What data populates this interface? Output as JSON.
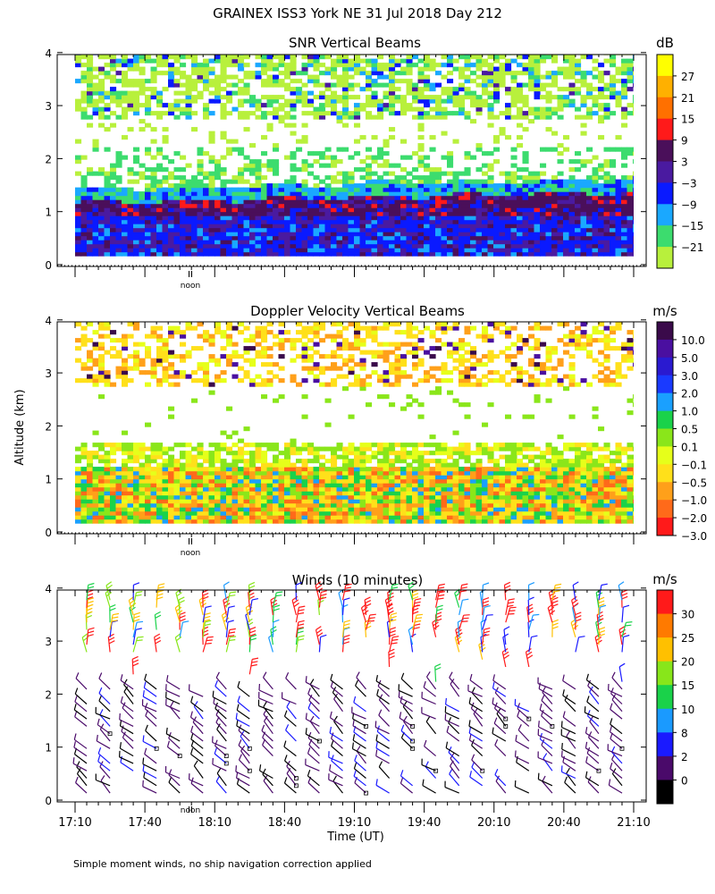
{
  "figure": {
    "title": "GRAINEX ISS3 York NE  31 Jul 2018 Day 212",
    "ylabel": "Altitude (km)",
    "xlabel": "Time (UT)",
    "footnote": "Simple moment winds, no ship navigation correction applied",
    "noon_label": "noon"
  },
  "chart_data": [
    {
      "type": "heatmap",
      "title": "SNR Vertical Beams",
      "x_ticks": [
        "17:10",
        "17:40",
        "18:10",
        "18:40",
        "19:10",
        "19:40",
        "20:10",
        "20:40",
        "21:10"
      ],
      "xlim": [
        "17:10",
        "21:10"
      ],
      "y_ticks": [
        "0",
        "1",
        "2",
        "3",
        "4"
      ],
      "ylim": [
        0,
        4
      ],
      "colorbar": {
        "unit": "dB",
        "labels": [
          "27",
          "21",
          "15",
          "9",
          "3",
          "−3",
          "−9",
          "−15",
          "−21"
        ],
        "colors": [
          "#ffff00",
          "#ffb000",
          "#ff7000",
          "#ff1a1a",
          "#4a0f5a",
          "#4a1aa0",
          "#0a1aff",
          "#1aa8ff",
          "#3cdc6e",
          "#b8f03c"
        ]
      },
      "layers": [
        {
          "altitude_km": [
            0.15,
            0.9
          ],
          "dominant_db": "3 to 9"
        },
        {
          "altitude_km": [
            0.9,
            1.3
          ],
          "dominant_db": "9 to 15"
        },
        {
          "altitude_km": [
            1.3,
            2.2
          ],
          "dominant_db": "-21 to -9"
        },
        {
          "altitude_km": [
            2.7,
            4.0
          ],
          "dominant_db": "-21 to -15"
        }
      ]
    },
    {
      "type": "heatmap",
      "title": "Doppler Velocity Vertical Beams",
      "x_ticks": [],
      "y_ticks": [
        "0",
        "1",
        "2",
        "3",
        "4"
      ],
      "ylim": [
        0,
        4
      ],
      "colorbar": {
        "unit": "m/s",
        "labels": [
          "10.0",
          "5.0",
          "3.0",
          "2.0",
          "1.0",
          "0.5",
          "0.1",
          "−0.1",
          "−0.5",
          "−1.0",
          "−2.0",
          "−3.0"
        ],
        "colors": [
          "#3a0a4a",
          "#4a0fa0",
          "#2a1ad0",
          "#1a3aff",
          "#1aa0ff",
          "#1ad24a",
          "#8ae61a",
          "#e6ff1a",
          "#ffe01a",
          "#ffa01a",
          "#ff6a1a",
          "#ff1a1a"
        ]
      },
      "layers": [
        {
          "altitude_km": [
            0.15,
            1.3
          ],
          "dominant_ms": "-1.0 to 0.5"
        },
        {
          "altitude_km": [
            1.3,
            1.7
          ],
          "dominant_ms": "-0.5 to 0.1"
        },
        {
          "altitude_km": [
            2.7,
            3.9
          ],
          "dominant_ms": "-2.0 to -0.1"
        }
      ]
    },
    {
      "type": "scatter",
      "title": "Winds (10 minutes)",
      "x_ticks": [
        "17:10",
        "17:40",
        "18:10",
        "18:40",
        "19:10",
        "19:40",
        "20:10",
        "20:40",
        "21:10"
      ],
      "y_ticks": [
        "0",
        "1",
        "2",
        "3",
        "4"
      ],
      "ylim": [
        0,
        4
      ],
      "colorbar": {
        "unit": "m/s",
        "labels": [
          "30",
          "25",
          "20",
          "15",
          "10",
          "8",
          "2",
          "0"
        ],
        "colors": [
          "#ff1a1a",
          "#ff7a00",
          "#ffc000",
          "#88e61a",
          "#1ad24a",
          "#1a9aff",
          "#1a1aff",
          "#4a0a6a",
          "#000000"
        ]
      },
      "profile_times": [
        "17:15",
        "17:25",
        "17:35",
        "17:45",
        "17:55",
        "18:05",
        "18:15",
        "18:25",
        "18:35",
        "18:45",
        "18:55",
        "19:05",
        "19:15",
        "19:25",
        "19:35",
        "19:45",
        "19:55",
        "20:05",
        "20:15",
        "20:25",
        "20:35",
        "20:45",
        "20:55",
        "21:05"
      ]
    }
  ]
}
